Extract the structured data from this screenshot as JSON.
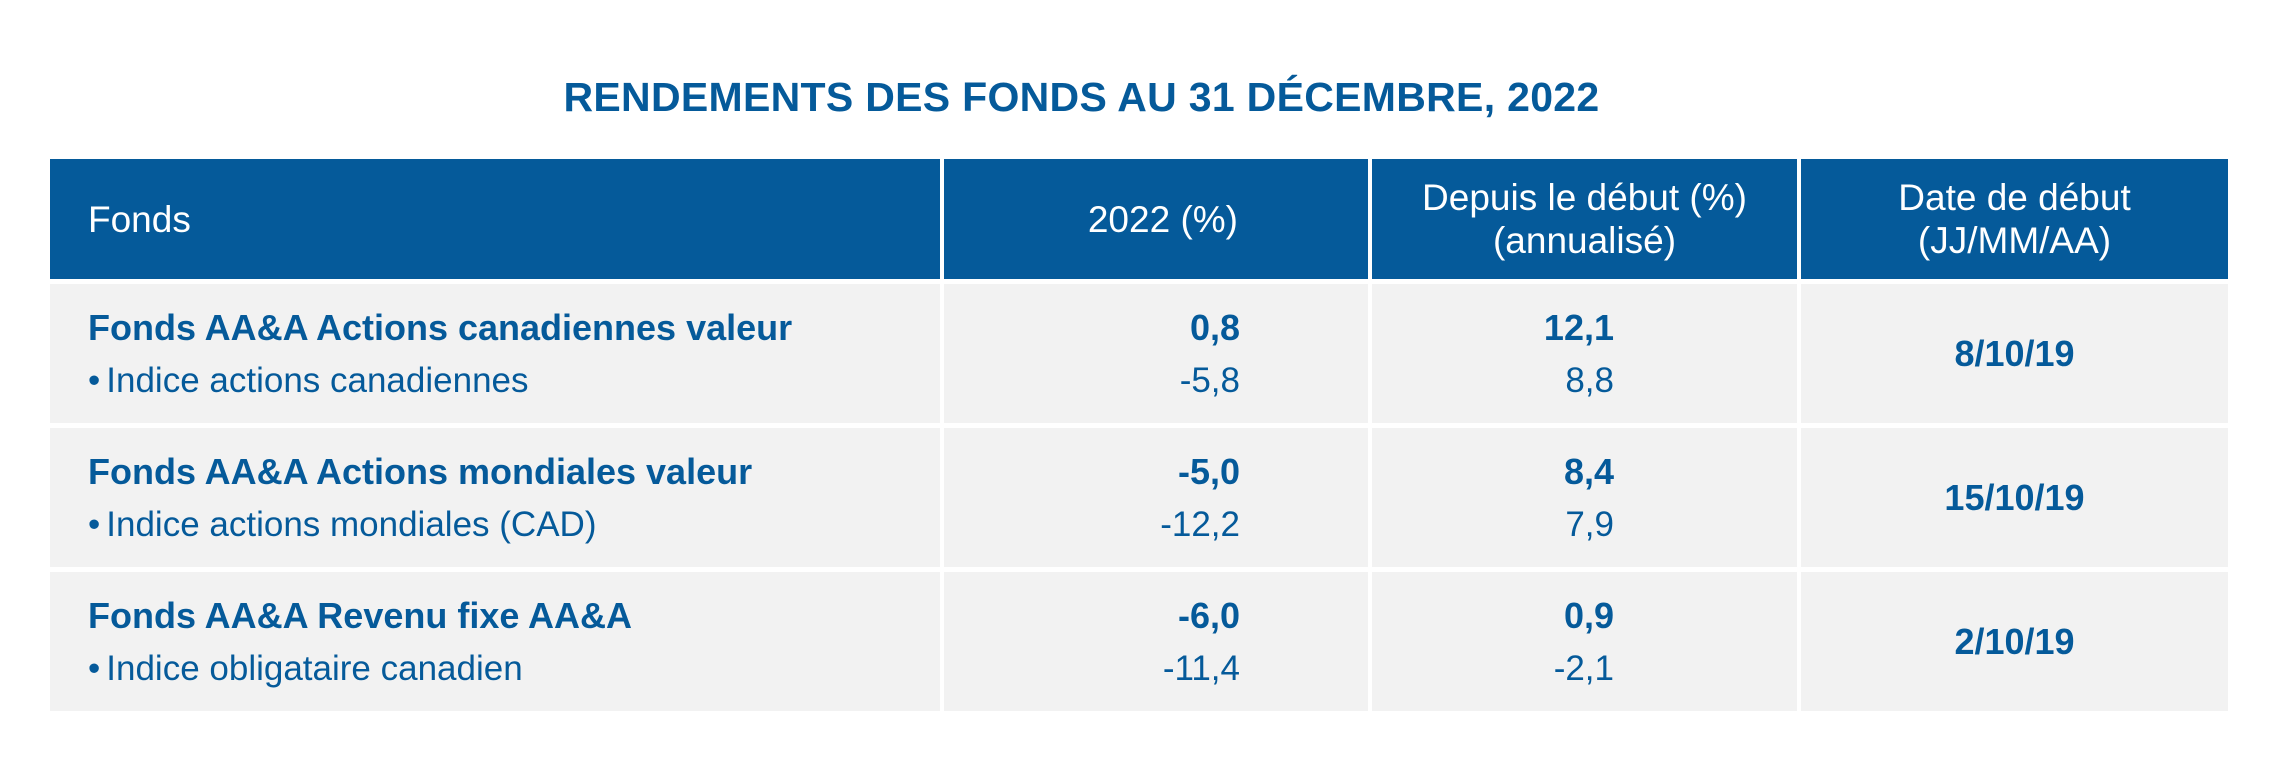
{
  "title": "RENDEMENTS DES FONDS AU 31 DÉCEMBRE, 2022",
  "headers": {
    "fund": "Fonds",
    "year": "2022 (%)",
    "since_inception_line1": "Depuis le début (%)",
    "since_inception_line2": "(annualisé)",
    "start_date_line1": "Date de début",
    "start_date_line2": "(JJ/MM/AA)"
  },
  "bullet": "•",
  "rows": [
    {
      "fund": "Fonds AA&A Actions canadiennes valeur",
      "index": "Indice actions canadiennes",
      "fund_2022": "0,8",
      "index_2022": "-5,8",
      "fund_since": "12,1",
      "index_since": "8,8",
      "start_date": "8/10/19"
    },
    {
      "fund": "Fonds AA&A Actions mondiales valeur",
      "index": "Indice actions mondiales (CAD)",
      "fund_2022": "-5,0",
      "index_2022": "-12,2",
      "fund_since": "8,4",
      "index_since": "7,9",
      "start_date": "15/10/19"
    },
    {
      "fund": "Fonds AA&A Revenu fixe AA&A",
      "index": "Indice obligataire canadien",
      "fund_2022": "-6,0",
      "index_2022": "-11,4",
      "fund_since": "0,9",
      "index_since": "-2,1",
      "start_date": "2/10/19"
    }
  ],
  "colors": {
    "header_bg": "#055a9a",
    "accent_text": "#055a9a",
    "row_bg": "#f2f2f2"
  }
}
